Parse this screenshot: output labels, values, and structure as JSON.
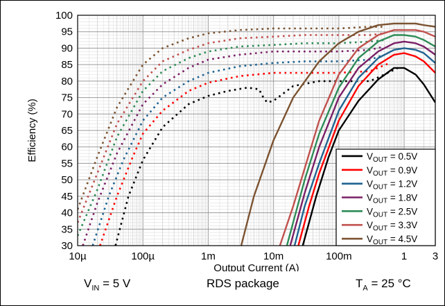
{
  "chart_data": {
    "type": "line",
    "xlabel": "Output Current (A)",
    "ylabel": "Efficiency (%)",
    "x_scale": "log",
    "xlim": [
      1e-05,
      3
    ],
    "ylim": [
      30,
      100
    ],
    "y_ticks": [
      30,
      35,
      40,
      45,
      50,
      55,
      60,
      65,
      70,
      75,
      80,
      85,
      90,
      95,
      100
    ],
    "x_ticks": [
      {
        "value": 1e-05,
        "label": "10µ"
      },
      {
        "value": 0.0001,
        "label": "100µ"
      },
      {
        "value": 0.001,
        "label": "1m"
      },
      {
        "value": 0.01,
        "label": "10m"
      },
      {
        "value": 0.1,
        "label": "100m"
      },
      {
        "value": 1,
        "label": "1"
      },
      {
        "value": 3,
        "label": "3"
      }
    ],
    "grid": true,
    "legend_position": "bottom-right",
    "series_note": "dotted segments show one operating mode at light load, solid segments show the other mode",
    "series": [
      {
        "name": "VOUT = 0.5V",
        "sub": "OUT",
        "value_label": " = 0.5V",
        "color": "#000000",
        "dotted": [
          [
            3.8e-05,
            30
          ],
          [
            6e-05,
            45
          ],
          [
            0.0001,
            56
          ],
          [
            0.0002,
            66
          ],
          [
            0.0005,
            73
          ],
          [
            0.001,
            75.5
          ],
          [
            0.002,
            77
          ],
          [
            0.004,
            78
          ],
          [
            0.006,
            77.5
          ],
          [
            0.007,
            75
          ],
          [
            0.008,
            73.5
          ],
          [
            0.01,
            74
          ],
          [
            0.02,
            78.5
          ],
          [
            0.05,
            80
          ],
          [
            0.1,
            80
          ],
          [
            0.2,
            80
          ],
          [
            0.3,
            80
          ],
          [
            0.5,
            82
          ],
          [
            0.8,
            84
          ]
        ],
        "solid": [
          [
            0.028,
            30
          ],
          [
            0.045,
            45
          ],
          [
            0.07,
            57
          ],
          [
            0.1,
            65
          ],
          [
            0.2,
            74
          ],
          [
            0.4,
            80.5
          ],
          [
            0.7,
            84
          ],
          [
            1,
            84
          ],
          [
            1.5,
            82
          ],
          [
            2,
            79
          ],
          [
            3,
            73.5
          ]
        ]
      },
      {
        "name": "VOUT = 0.9V",
        "sub": "OUT",
        "value_label": " = 0.9V",
        "color": "#ff0000",
        "dotted": [
          [
            2.2e-05,
            30
          ],
          [
            4e-05,
            45
          ],
          [
            7e-05,
            57
          ],
          [
            0.0001,
            64
          ],
          [
            0.0002,
            71
          ],
          [
            0.0005,
            77
          ],
          [
            0.001,
            79.5
          ],
          [
            0.003,
            81.5
          ],
          [
            0.01,
            82.5
          ],
          [
            0.03,
            82.5
          ],
          [
            0.1,
            82.5
          ],
          [
            0.3,
            83
          ],
          [
            0.6,
            85.5
          ]
        ],
        "solid": [
          [
            0.024,
            30
          ],
          [
            0.035,
            42
          ],
          [
            0.05,
            52
          ],
          [
            0.1,
            68
          ],
          [
            0.2,
            78.5
          ],
          [
            0.4,
            85
          ],
          [
            0.7,
            88
          ],
          [
            1,
            88.5
          ],
          [
            1.5,
            87.5
          ],
          [
            2,
            86
          ],
          [
            3,
            82.5
          ]
        ]
      },
      {
        "name": "VOUT = 1.2V",
        "sub": "OUT",
        "value_label": " = 1.2V",
        "color": "#1f6391",
        "dotted": [
          [
            1.7e-05,
            30
          ],
          [
            3e-05,
            45
          ],
          [
            5e-05,
            56
          ],
          [
            0.0001,
            68
          ],
          [
            0.0002,
            75
          ],
          [
            0.0005,
            80
          ],
          [
            0.001,
            82.5
          ],
          [
            0.003,
            84.5
          ],
          [
            0.01,
            85.5
          ],
          [
            0.03,
            86
          ],
          [
            0.1,
            86
          ],
          [
            0.3,
            86.5
          ],
          [
            0.5,
            88
          ]
        ],
        "solid": [
          [
            0.021,
            30
          ],
          [
            0.03,
            42
          ],
          [
            0.05,
            55
          ],
          [
            0.1,
            71
          ],
          [
            0.2,
            81
          ],
          [
            0.4,
            87
          ],
          [
            0.7,
            89.5
          ],
          [
            1,
            90
          ],
          [
            1.5,
            89.5
          ],
          [
            2,
            88.5
          ],
          [
            3,
            85.5
          ]
        ]
      },
      {
        "name": "VOUT = 1.8V",
        "sub": "OUT",
        "value_label": " = 1.8V",
        "color": "#7a1f66",
        "dotted": [
          [
            1.2e-05,
            30
          ],
          [
            2e-05,
            43
          ],
          [
            4e-05,
            58
          ],
          [
            0.0001,
            73
          ],
          [
            0.0002,
            79
          ],
          [
            0.0005,
            84
          ],
          [
            0.001,
            86.5
          ],
          [
            0.003,
            88
          ],
          [
            0.01,
            89
          ],
          [
            0.03,
            89
          ],
          [
            0.1,
            89
          ],
          [
            0.3,
            89.5
          ],
          [
            0.5,
            90.5
          ]
        ],
        "solid": [
          [
            0.018,
            30
          ],
          [
            0.03,
            46
          ],
          [
            0.05,
            60
          ],
          [
            0.1,
            75
          ],
          [
            0.2,
            84
          ],
          [
            0.4,
            89
          ],
          [
            0.7,
            91.5
          ],
          [
            1,
            92
          ],
          [
            1.5,
            91.5
          ],
          [
            2,
            90.5
          ],
          [
            3,
            88
          ]
        ]
      },
      {
        "name": "VOUT = 2.5V",
        "sub": "OUT",
        "value_label": " = 2.5V",
        "color": "#2e8b57",
        "dotted": [
          [
            1e-05,
            33
          ],
          [
            2e-05,
            47
          ],
          [
            4e-05,
            63
          ],
          [
            0.0001,
            77
          ],
          [
            0.0002,
            83
          ],
          [
            0.0005,
            87
          ],
          [
            0.001,
            89
          ],
          [
            0.003,
            90.5
          ],
          [
            0.01,
            91
          ],
          [
            0.03,
            91.5
          ],
          [
            0.1,
            91.5
          ],
          [
            0.3,
            92
          ],
          [
            0.5,
            92.5
          ]
        ],
        "solid": [
          [
            0.016,
            30
          ],
          [
            0.03,
            50
          ],
          [
            0.05,
            64
          ],
          [
            0.1,
            78
          ],
          [
            0.2,
            87
          ],
          [
            0.4,
            92
          ],
          [
            0.7,
            94
          ],
          [
            1,
            94
          ],
          [
            1.5,
            93.5
          ],
          [
            2,
            92.5
          ],
          [
            3,
            90.5
          ]
        ]
      },
      {
        "name": "VOUT = 3.3V",
        "sub": "OUT",
        "value_label": " = 3.3V",
        "color": "#c0504d",
        "dotted": [
          [
            1e-05,
            37
          ],
          [
            2e-05,
            52
          ],
          [
            4e-05,
            67
          ],
          [
            0.0001,
            80
          ],
          [
            0.0002,
            86
          ],
          [
            0.0005,
            89.5
          ],
          [
            0.001,
            91.5
          ],
          [
            0.003,
            93
          ],
          [
            0.01,
            93.5
          ],
          [
            0.03,
            94
          ],
          [
            0.1,
            94
          ],
          [
            0.3,
            94
          ],
          [
            0.5,
            94.5
          ]
        ],
        "solid": [
          [
            0.0125,
            30
          ],
          [
            0.02,
            42
          ],
          [
            0.05,
            68
          ],
          [
            0.1,
            82
          ],
          [
            0.2,
            90
          ],
          [
            0.4,
            94
          ],
          [
            0.7,
            95.5
          ],
          [
            1,
            95.5
          ],
          [
            1.5,
            95.5
          ],
          [
            2,
            95
          ],
          [
            3,
            93.5
          ]
        ]
      },
      {
        "name": "VOUT = 4.5V",
        "sub": "OUT",
        "value_label": " = 4.5V",
        "color": "#7b5230",
        "dotted": [
          [
            1e-05,
            41
          ],
          [
            2e-05,
            57
          ],
          [
            4e-05,
            72
          ],
          [
            0.0001,
            85
          ],
          [
            0.0002,
            90
          ],
          [
            0.0005,
            93
          ],
          [
            0.001,
            94.5
          ],
          [
            0.003,
            95.5
          ],
          [
            0.01,
            96
          ],
          [
            0.03,
            96
          ],
          [
            0.1,
            96
          ],
          [
            0.3,
            96.5
          ],
          [
            0.5,
            96.5
          ]
        ],
        "solid": [
          [
            0.0032,
            30
          ],
          [
            0.005,
            45
          ],
          [
            0.01,
            62
          ],
          [
            0.02,
            75
          ],
          [
            0.05,
            86
          ],
          [
            0.1,
            91.5
          ],
          [
            0.2,
            95
          ],
          [
            0.4,
            97
          ],
          [
            0.7,
            97.5
          ],
          [
            1,
            97.5
          ],
          [
            1.5,
            97.5
          ],
          [
            2,
            97
          ],
          [
            3,
            96.5
          ]
        ]
      }
    ]
  },
  "footer": {
    "vin_main": "V",
    "vin_sub": "IN",
    "vin_value": " = 5 V",
    "package": "RDS package",
    "ta_main": "T",
    "ta_sub": "A",
    "ta_value": " = 25 °C"
  }
}
